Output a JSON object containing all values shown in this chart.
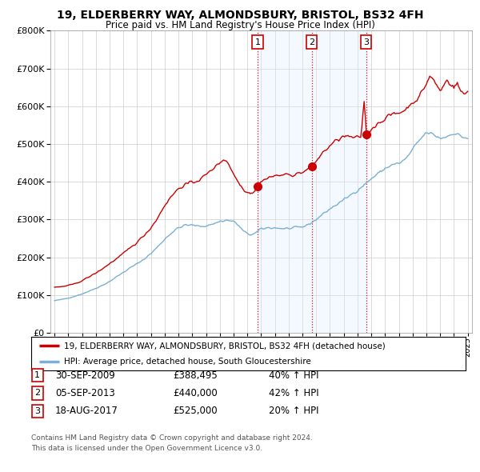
{
  "title": "19, ELDERBERRY WAY, ALMONDSBURY, BRISTOL, BS32 4FH",
  "subtitle": "Price paid vs. HM Land Registry's House Price Index (HPI)",
  "ylim": [
    0,
    800000
  ],
  "xlim_start": 1994.7,
  "xlim_end": 2025.3,
  "legend_line1": "19, ELDERBERRY WAY, ALMONDSBURY, BRISTOL, BS32 4FH (detached house)",
  "legend_line2": "HPI: Average price, detached house, South Gloucestershire",
  "transactions": [
    {
      "num": 1,
      "date": "30-SEP-2009",
      "price": "£388,495",
      "hpi": "40% ↑ HPI",
      "year": 2009.75,
      "price_val": 388495
    },
    {
      "num": 2,
      "date": "05-SEP-2013",
      "price": "£440,000",
      "hpi": "42% ↑ HPI",
      "year": 2013.67,
      "price_val": 440000
    },
    {
      "num": 3,
      "date": "18-AUG-2017",
      "price": "£525,000",
      "hpi": "20% ↑ HPI",
      "year": 2017.62,
      "price_val": 525000
    }
  ],
  "footnote1": "Contains HM Land Registry data © Crown copyright and database right 2024.",
  "footnote2": "This data is licensed under the Open Government Licence v3.0.",
  "red_line_color": "#cc0000",
  "blue_line_color": "#7ab0d4",
  "fill_color": "#ddeeff",
  "background_color": "#ffffff",
  "grid_color": "#cccccc",
  "shade_alpha": 0.35
}
